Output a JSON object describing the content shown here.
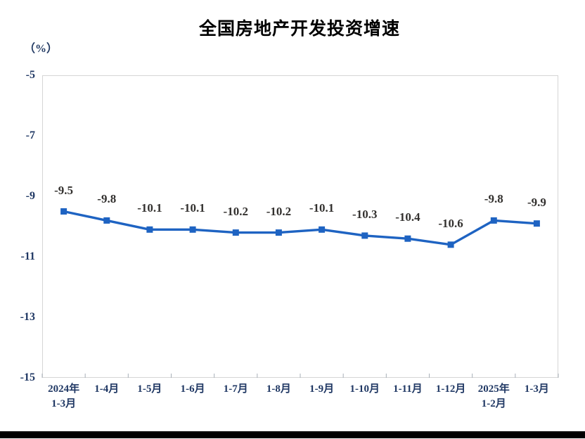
{
  "chart_data": {
    "type": "line",
    "title": "全国房地产开发投资增速",
    "ylabel": "（%）",
    "categories": [
      "2024年\n1-3月",
      "1-4月",
      "1-5月",
      "1-6月",
      "1-7月",
      "1-8月",
      "1-9月",
      "1-10月",
      "1-11月",
      "1-12月",
      "2025年\n1-2月",
      "1-3月"
    ],
    "values": [
      -9.5,
      -9.8,
      -10.1,
      -10.1,
      -10.2,
      -10.2,
      -10.1,
      -10.3,
      -10.4,
      -10.6,
      -9.8,
      -9.9
    ],
    "point_labels": [
      "-9.5",
      "-9.8",
      "-10.1",
      "-10.1",
      "-10.2",
      "-10.2",
      "-10.1",
      "-10.3",
      "-10.4",
      "-10.6",
      "-9.8",
      "-9.9"
    ],
    "yticks": [
      -5,
      -7,
      -9,
      -11,
      -13,
      -15
    ],
    "ylim": [
      -15,
      -5
    ],
    "grid": false,
    "legend": "none",
    "marker": "square",
    "series_name": "全国房地产开发投资增速"
  },
  "colors": {
    "line": "#1E63C2",
    "marker": "#1E63C2",
    "plot_border": "#d5d5d5",
    "axis_tick": "#a8b0b8",
    "axis_text": "#203864",
    "data_label_text": "#33312f",
    "title_text": "#000000",
    "bottom_bar": "#000000"
  }
}
